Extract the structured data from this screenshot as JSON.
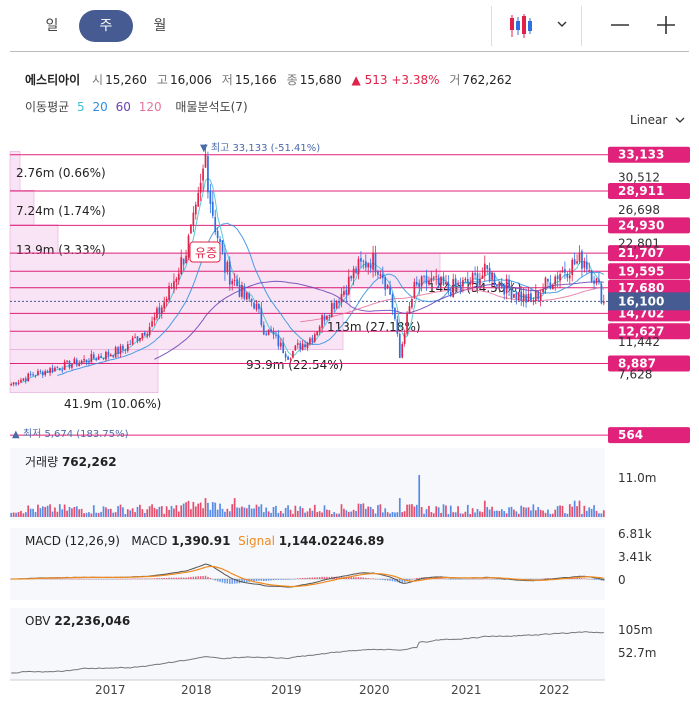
{
  "tabs": [
    {
      "label": "일",
      "active": false
    },
    {
      "label": "주",
      "active": true
    },
    {
      "label": "월",
      "active": false
    }
  ],
  "quote": {
    "name": "에스티아이",
    "open_label": "시",
    "open": "15,260",
    "high_label": "고",
    "high": "16,006",
    "low_label": "저",
    "low": "15,166",
    "close_label": "종",
    "close": "15,680",
    "change": "▲ 513",
    "change_pct": "+3.38%",
    "volume_label": "거",
    "volume": "762,262"
  },
  "indicators": {
    "ma_label": "이동평균",
    "ma_periods": [
      {
        "label": "5",
        "color": "#3fbfd0"
      },
      {
        "label": "20",
        "color": "#2f8ee0"
      },
      {
        "label": "60",
        "color": "#6a3fb5"
      },
      {
        "label": "120",
        "color": "#e8739c"
      }
    ],
    "volume_profile_label": "매물분석도(7)"
  },
  "scale_mode": "Linear",
  "colors": {
    "up": "#e0224a",
    "down": "#2f6fe0",
    "accent": "#e0227a",
    "current": "#465b91"
  },
  "chart_data": {
    "type": "candlestick",
    "x_axis_ticks": [
      "2017",
      "2018",
      "2019",
      "2020",
      "2021",
      "2022"
    ],
    "price_axis_ticks": [
      "30,512",
      "26,698",
      "22,801",
      "11,442",
      "7,628"
    ],
    "max_marker": {
      "label": "▼ 최고",
      "value": "33,133 (-51.41%)"
    },
    "min_marker": {
      "label": "▲ 최저",
      "value": "5,674 (183.75%)"
    },
    "horizontal_levels": [
      {
        "label": "33,133",
        "value": 33133
      },
      {
        "label": "28,911",
        "value": 28911
      },
      {
        "label": "24,930",
        "value": 24930
      },
      {
        "label": "21,707",
        "value": 21707
      },
      {
        "label": "19,595",
        "value": 19595
      },
      {
        "label": "17,680",
        "value": 17680
      },
      {
        "label": "14,702",
        "value": 14702
      },
      {
        "label": "12,627",
        "value": 12627
      },
      {
        "label": "8,887",
        "value": 8887
      },
      {
        "label": "564",
        "value": 564
      }
    ],
    "current_price": {
      "label": "16,100",
      "value": 16100
    },
    "volume_profile": [
      {
        "label": "2.76m (0.66%)",
        "value": 2.76
      },
      {
        "label": "7.24m (1.74%)",
        "value": 7.24
      },
      {
        "label": "13.9m (3.33%)",
        "value": 13.9
      },
      {
        "label": "144m (34.50%)",
        "value": 144
      },
      {
        "label": "113m (27.18%)",
        "value": 113
      },
      {
        "label": "93.9m (22.54%)",
        "value": 93.9
      },
      {
        "label": "41.9m (10.06%)",
        "value": 41.9
      }
    ],
    "badge": "유증",
    "weekly_close_keypoints": [
      [
        0,
        6.5
      ],
      [
        8,
        7.5
      ],
      [
        20,
        8.5
      ],
      [
        34,
        9.5
      ],
      [
        46,
        10.5
      ],
      [
        58,
        13.5
      ],
      [
        64,
        16.5
      ],
      [
        72,
        22
      ],
      [
        76,
        26
      ],
      [
        78,
        29
      ],
      [
        80,
        33
      ],
      [
        82,
        28
      ],
      [
        84,
        25
      ],
      [
        88,
        20
      ],
      [
        93,
        18
      ],
      [
        96,
        16.5
      ],
      [
        100,
        16
      ],
      [
        104,
        13
      ],
      [
        108,
        12
      ],
      [
        112,
        10.5
      ],
      [
        114,
        9.8
      ],
      [
        118,
        10.8
      ],
      [
        124,
        12
      ],
      [
        130,
        15
      ],
      [
        136,
        17
      ],
      [
        142,
        19.8
      ],
      [
        148,
        21
      ],
      [
        152,
        20
      ],
      [
        156,
        17
      ],
      [
        158,
        14
      ],
      [
        160,
        9.5
      ],
      [
        162,
        13
      ],
      [
        166,
        17.5
      ],
      [
        172,
        18.5
      ],
      [
        180,
        17.5
      ],
      [
        188,
        18.2
      ],
      [
        196,
        19.5
      ],
      [
        200,
        18.5
      ],
      [
        208,
        17
      ],
      [
        214,
        16
      ],
      [
        220,
        18
      ],
      [
        226,
        19.5
      ],
      [
        232,
        20.5
      ],
      [
        236,
        21
      ],
      [
        240,
        19
      ],
      [
        244,
        16.1
      ]
    ],
    "volume": {
      "label": "거래량",
      "value": "762,262",
      "axis": [
        "11.0m"
      ]
    },
    "macd": {
      "label": "MACD (12,26,9)",
      "macd_label": "MACD",
      "macd_value": "1,390.91",
      "signal_label": "Signal",
      "signal_value": "1,144.02246.89",
      "axis": [
        "6.81k",
        "3.41k",
        "0"
      ]
    },
    "obv": {
      "label": "OBV",
      "value": "22,236,046",
      "axis": [
        "105m",
        "52.7m"
      ]
    }
  }
}
